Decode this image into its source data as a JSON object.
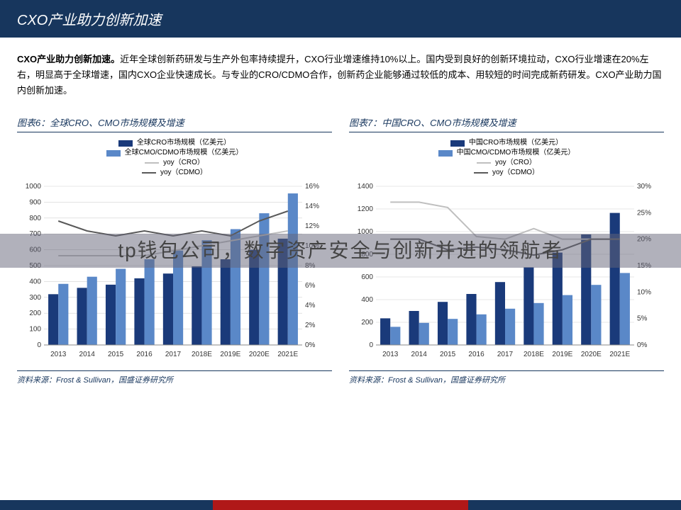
{
  "header": {
    "title": "CXO产业助力创新加速"
  },
  "summary": {
    "bold": "CXO产业助力创新加速。",
    "text": "近年全球创新药研发与生产外包率持续提升，CXO行业增速维持10%以上。国内受到良好的创新环境拉动，CXO行业增速在20%左右，明显高于全球增速，国内CXO企业快速成长。与专业的CRO/CDMO合作，创新药企业能够通过较低的成本、用较短的时间完成新药研发。CXO产业助力国内创新加速。"
  },
  "watermark": "tp钱包公司，数字资产安全与创新并进的领航者",
  "chart_left": {
    "title": "图表6：全球CRO、CMO市场规模及增速",
    "legend": {
      "s1": "全球CRO市场规模（亿美元）",
      "s2": "全球CMO/CDMO市场规模（亿美元）",
      "s3": "yoy（CRO）",
      "s4": "yoy（CDMO）"
    },
    "type": "bar+line",
    "categories": [
      "2013",
      "2014",
      "2015",
      "2016",
      "2017",
      "2018E",
      "2019E",
      "2020E",
      "2021E"
    ],
    "bar1": [
      320,
      360,
      380,
      420,
      450,
      495,
      540,
      600,
      670
    ],
    "bar2": [
      385,
      430,
      480,
      540,
      595,
      660,
      730,
      830,
      955
    ],
    "line1": [
      9,
      9,
      9,
      9,
      9.5,
      10,
      10.5,
      11,
      11.5
    ],
    "line2": [
      12.5,
      11.5,
      11,
      11.5,
      11,
      11.5,
      11,
      12.5,
      13.5
    ],
    "y_left": {
      "min": 0,
      "max": 1000,
      "step": 100
    },
    "y_right": {
      "min": 0,
      "max": 16,
      "step": 2,
      "suffix": "%"
    },
    "colors": {
      "bar1": "#1a3a7a",
      "bar2": "#5a88c8",
      "line1": "#bfbfbf",
      "line2": "#595959"
    },
    "bg": "#ffffff",
    "grid": "#d0d0d0",
    "bar_width": 0.35,
    "font_axis": 10,
    "source": "资料来源：Frost & Sullivan，国盛证券研究所"
  },
  "chart_right": {
    "title": "图表7：中国CRO、CMO市场规模及增速",
    "legend": {
      "s1": "中国CRO市场规模（亿美元）",
      "s2": "中国CMO/CDMO市场规模（亿美元）",
      "s3": "yoy（CRO）",
      "s4": "yoy（CDMO）"
    },
    "type": "bar+line",
    "categories": [
      "2013",
      "2014",
      "2015",
      "2016",
      "2017",
      "2018E",
      "2019E",
      "2020E",
      "2021E"
    ],
    "bar1": [
      235,
      300,
      380,
      450,
      555,
      685,
      815,
      975,
      1165
    ],
    "bar2": [
      160,
      195,
      230,
      270,
      320,
      370,
      440,
      530,
      635
    ],
    "line1": [
      27,
      27,
      26,
      20.5,
      20,
      22,
      20,
      20,
      20
    ],
    "line2": [
      20,
      20,
      18,
      18.5,
      18,
      17,
      18,
      20,
      20
    ],
    "y_left": {
      "min": 0,
      "max": 1400,
      "step": 200
    },
    "y_right": {
      "min": 0,
      "max": 30,
      "step": 5,
      "suffix": "%"
    },
    "colors": {
      "bar1": "#1a3a7a",
      "bar2": "#5a88c8",
      "line1": "#bfbfbf",
      "line2": "#595959"
    },
    "bg": "#ffffff",
    "grid": "#d0d0d0",
    "bar_width": 0.35,
    "font_axis": 10,
    "source": "资料来源：Frost & Sullivan，国盛证券研究所"
  }
}
